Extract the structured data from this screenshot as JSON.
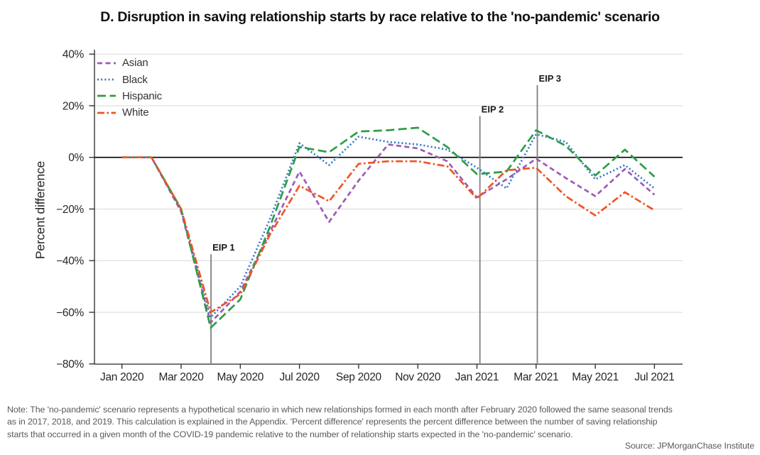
{
  "title": "D. Disruption in saving relationship starts by race relative to the 'no-pandemic' scenario",
  "y_axis_label": "Percent difference",
  "note": [
    "Note: The 'no-pandemic' scenario represents a hypothetical scenario in which new relationships formed in each month after February 2020 followed the same seasonal trends",
    "as in 2017, 2018, and 2019. This calculation is explained in the Appendix. 'Percent difference' represents the percent difference between the number of saving relationship",
    "starts that occurred in a given month of the COVID-19 pandemic relative to the number of relationship starts expected in the 'no-pandemic' scenario."
  ],
  "source": "Source: JPMorganChase Institute",
  "chart_data": {
    "type": "line",
    "x_months": [
      "Jan 2020",
      "Feb 2020",
      "Mar 2020",
      "Apr 2020",
      "May 2020",
      "Jun 2020",
      "Jul 2020",
      "Aug 2020",
      "Sep 2020",
      "Oct 2020",
      "Nov 2020",
      "Dec 2020",
      "Jan 2021",
      "Feb 2021",
      "Mar 2021",
      "Apr 2021",
      "May 2021",
      "Jun 2021",
      "Jul 2021"
    ],
    "x_ticks": [
      {
        "label": "Jan 2020",
        "month_index": 0
      },
      {
        "label": "Mar 2020",
        "month_index": 2
      },
      {
        "label": "May 2020",
        "month_index": 4
      },
      {
        "label": "Jul 2020",
        "month_index": 6
      },
      {
        "label": "Sep 2020",
        "month_index": 8
      },
      {
        "label": "Nov 2020",
        "month_index": 10
      },
      {
        "label": "Jan 2021",
        "month_index": 12
      },
      {
        "label": "Mar 2021",
        "month_index": 14
      },
      {
        "label": "May 2021",
        "month_index": 16
      },
      {
        "label": "Jul 2021",
        "month_index": 18
      }
    ],
    "y_ticks": [
      {
        "label": "40%",
        "value": 40
      },
      {
        "label": "20%",
        "value": 20
      },
      {
        "label": "0%",
        "value": 0
      },
      {
        "label": "−20%",
        "value": -20
      },
      {
        "label": "−40%",
        "value": -40
      },
      {
        "label": "−60%",
        "value": -60
      },
      {
        "label": "−80%",
        "value": -80
      }
    ],
    "ylim": [
      -80,
      40
    ],
    "ylabel": "Percent difference",
    "legend_position": "upper-left",
    "grid": "horizontal",
    "series": [
      {
        "name": "Asian",
        "color": "#9d5bb5",
        "dash": "7 4.5",
        "values": [
          0,
          0,
          -21,
          -64,
          -52,
          -29,
          -5.5,
          -25,
          -9,
          5,
          3.5,
          -1.5,
          -15.5,
          -8.5,
          -0.5,
          -8,
          -15,
          -4.5,
          -14.5
        ]
      },
      {
        "name": "Black",
        "color": "#3377c4",
        "dash": "2 3.2",
        "values": [
          0,
          0,
          -20.5,
          -62,
          -50,
          -24,
          5.5,
          -3,
          8,
          6,
          5,
          3,
          -4,
          -12,
          9,
          6,
          -8.5,
          -3,
          -12
        ]
      },
      {
        "name": "Hispanic",
        "color": "#2d9e46",
        "dash": "12 5.5",
        "values": [
          0,
          0,
          -20,
          -66,
          -55,
          -27,
          4,
          2,
          10,
          10.5,
          11.5,
          4,
          -6.5,
          -5.5,
          10.5,
          4.5,
          -7,
          3,
          -7.5
        ]
      },
      {
        "name": "White",
        "color": "#ee5426",
        "dash": "10 3.5 2.6 3.5",
        "values": [
          0,
          0,
          -20,
          -60,
          -53,
          -30,
          -11,
          -17,
          -2.5,
          -1.5,
          -1.5,
          -3.5,
          -16,
          -5,
          -4,
          -15,
          -22.5,
          -13.5,
          -20.5
        ]
      }
    ],
    "annotations": [
      {
        "label": "EIP 1",
        "month": "Apr 2020",
        "month_index": 3.01,
        "line_top_pct": -37.5
      },
      {
        "label": "EIP 2",
        "month": "Jan 2021",
        "month_index": 12.1,
        "line_top_pct": 16
      },
      {
        "label": "EIP 3",
        "month": "Mar 2021",
        "month_index": 14.04,
        "line_top_pct": 28
      }
    ]
  }
}
